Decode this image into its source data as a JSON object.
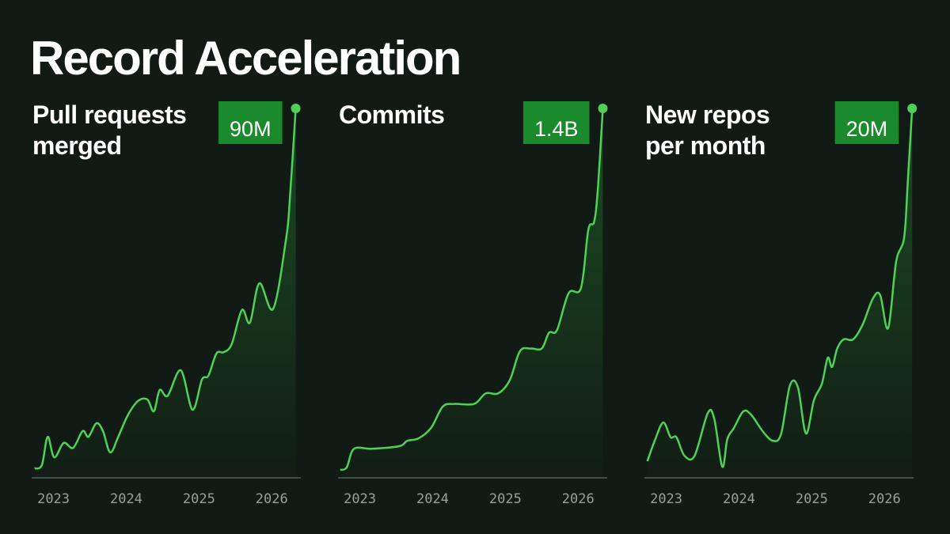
{
  "title": "Record Acceleration",
  "chart_data": [
    {
      "type": "line",
      "title": [
        "Pull requests",
        "merged"
      ],
      "color": "#4fd158",
      "label_color": "#1b8a2c",
      "xlim": [
        2022.7,
        2026.4
      ],
      "xticks": [
        2023,
        2024,
        2025,
        2026
      ],
      "ylim": [
        0,
        90
      ],
      "x": [
        2022.74,
        2022.84,
        2022.92,
        2023.01,
        2023.14,
        2023.27,
        2023.4,
        2023.48,
        2023.59,
        2023.68,
        2023.78,
        2023.89,
        2024.02,
        2024.16,
        2024.29,
        2024.38,
        2024.46,
        2024.57,
        2024.75,
        2024.91,
        2025.04,
        2025.13,
        2025.24,
        2025.34,
        2025.45,
        2025.59,
        2025.7,
        2025.83,
        2026.02,
        2026.2,
        2026.25,
        2026.33
      ],
      "values": [
        2.3,
        3.1,
        10.0,
        5.0,
        8.5,
        7.3,
        11.4,
        10.0,
        13.3,
        11.4,
        6.2,
        10.0,
        15.2,
        18.7,
        19.1,
        16.2,
        21.4,
        20.0,
        26.2,
        16.6,
        23.9,
        24.9,
        30.3,
        30.6,
        32.6,
        40.9,
        37.8,
        47.4,
        41.2,
        58.6,
        68.2,
        90
      ],
      "value_labels": [
        null,
        null,
        null,
        null,
        null,
        null,
        null,
        null,
        null,
        null,
        null,
        null,
        null,
        null,
        null,
        null,
        null,
        null,
        null,
        null,
        null,
        null,
        null,
        null,
        null,
        null,
        null,
        null,
        null,
        null,
        null,
        "90M"
      ]
    },
    {
      "type": "line",
      "title": [
        "Commits"
      ],
      "color": "#4fd158",
      "label_color": "#1b8a2c",
      "xlim": [
        2022.7,
        2026.4
      ],
      "xticks": [
        2023,
        2024,
        2025,
        2026
      ],
      "ylim": [
        0,
        1.4
      ],
      "x": [
        2022.73,
        2022.82,
        2022.92,
        2023.16,
        2023.54,
        2023.65,
        2023.81,
        2023.98,
        2024.14,
        2024.3,
        2024.57,
        2024.73,
        2024.9,
        2025.06,
        2025.2,
        2025.35,
        2025.5,
        2025.6,
        2025.71,
        2025.87,
        2026.04,
        2026.14,
        2026.22,
        2026.27,
        2026.34
      ],
      "values": [
        0.03,
        0.04,
        0.11,
        0.11,
        0.12,
        0.14,
        0.15,
        0.19,
        0.27,
        0.28,
        0.28,
        0.32,
        0.32,
        0.37,
        0.48,
        0.49,
        0.49,
        0.55,
        0.56,
        0.7,
        0.72,
        0.94,
        0.97,
        1.09,
        1.4
      ],
      "value_labels": [
        null,
        null,
        null,
        null,
        null,
        null,
        null,
        null,
        null,
        null,
        null,
        null,
        null,
        null,
        null,
        null,
        null,
        null,
        null,
        null,
        null,
        null,
        null,
        null,
        "1.4B"
      ]
    },
    {
      "type": "line",
      "title": [
        "New repos",
        "per month"
      ],
      "color": "#4fd158",
      "label_color": "#1b8a2c",
      "xlim": [
        2022.7,
        2026.4
      ],
      "xticks": [
        2023,
        2024,
        2025,
        2026
      ],
      "ylim": [
        0,
        20
      ],
      "x": [
        2022.74,
        2022.85,
        2022.96,
        2023.06,
        2023.14,
        2023.25,
        2023.39,
        2023.57,
        2023.66,
        2023.77,
        2023.84,
        2023.93,
        2024.06,
        2024.17,
        2024.33,
        2024.47,
        2024.58,
        2024.7,
        2024.81,
        2024.92,
        2025.03,
        2025.14,
        2025.22,
        2025.28,
        2025.35,
        2025.44,
        2025.57,
        2025.7,
        2025.84,
        2025.94,
        2026.05,
        2026.16,
        2026.27,
        2026.32,
        2026.38
      ],
      "values": [
        0.9,
        2.1,
        3.0,
        2.2,
        2.2,
        1.2,
        1.2,
        3.5,
        3.2,
        0.6,
        2.1,
        2.7,
        3.6,
        3.4,
        2.5,
        2.0,
        2.4,
        5.0,
        4.9,
        2.4,
        4.2,
        5.1,
        6.5,
        6.0,
        7.0,
        7.5,
        7.5,
        8.3,
        9.7,
        9.9,
        8.1,
        11.7,
        13.0,
        16.0,
        20
      ],
      "value_labels": [
        null,
        null,
        null,
        null,
        null,
        null,
        null,
        null,
        null,
        null,
        null,
        null,
        null,
        null,
        null,
        null,
        null,
        null,
        null,
        null,
        null,
        null,
        null,
        null,
        null,
        null,
        null,
        null,
        null,
        null,
        null,
        null,
        null,
        null,
        "20M"
      ]
    }
  ]
}
